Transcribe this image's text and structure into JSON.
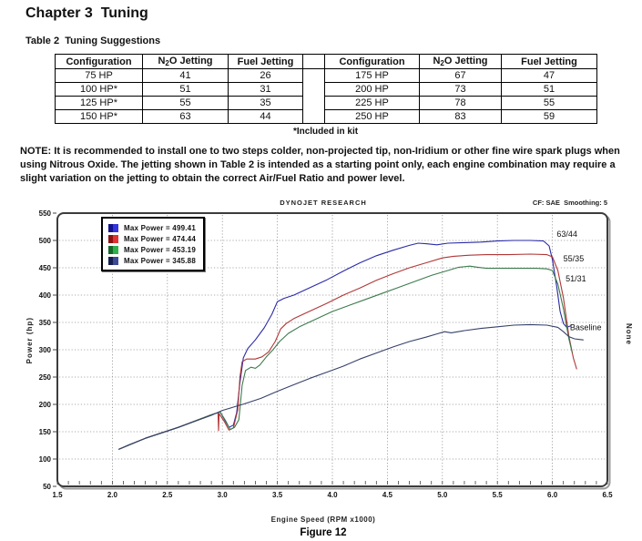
{
  "page": {
    "chapter_title": "Chapter 3  Tuning",
    "table_caption": "Table 2  Tuning Suggestions",
    "note_text": "NOTE:  It is recommended to install one to two steps colder, non-projected tip, non-Iridium or other fine wire spark plugs when using Nitrous Oxide. The jetting shown in Table 2 is intended as a starting point only, each engine combination may require a slight variation on the jetting to obtain the correct Air/Fuel Ratio and power level.",
    "figure_caption": "Figure 12"
  },
  "table": {
    "headers": {
      "config": "Configuration",
      "n2o_pre": "N",
      "n2o_sub": "2",
      "n2o_post": "O Jetting",
      "fuel": "Fuel Jetting"
    },
    "rows_left": [
      [
        "75 HP",
        "41",
        "26"
      ],
      [
        "100 HP*",
        "51",
        "31"
      ],
      [
        "125 HP*",
        "55",
        "35"
      ],
      [
        "150 HP*",
        "63",
        "44"
      ]
    ],
    "rows_right": [
      [
        "175 HP",
        "67",
        "47"
      ],
      [
        "200 HP",
        "73",
        "51"
      ],
      [
        "225 HP",
        "78",
        "55"
      ],
      [
        "250 HP",
        "83",
        "59"
      ]
    ],
    "footnote": "*Included in kit"
  },
  "chart_data": {
    "type": "line",
    "title": "DYNOJET RESEARCH",
    "top_right": "CF: SAE  Smoothing: 5",
    "xlabel": "Engine Speed (RPM x1000)",
    "ylabel": "Power (hp)",
    "right_side_label": "None",
    "xlim": [
      1.5,
      6.5
    ],
    "ylim": [
      50,
      550
    ],
    "x_ticks": [
      "1.5",
      "2.0",
      "2.5",
      "3.0",
      "3.5",
      "4.0",
      "4.5",
      "5.0",
      "5.5",
      "6.0",
      "6.5"
    ],
    "y_ticks": [
      "550",
      "500",
      "450",
      "400",
      "350",
      "300",
      "250",
      "200",
      "150",
      "100",
      "50"
    ],
    "grid": true,
    "legend_position": "top-left",
    "legend": [
      {
        "label": "Max Power = 499.41",
        "color": "#3434e0",
        "color_dark": "#12128c"
      },
      {
        "label": "Max Power = 474.44",
        "color": "#e03434",
        "color_dark": "#8c1212"
      },
      {
        "label": "Max Power = 453.19",
        "color": "#30b04a",
        "color_dark": "#14682a"
      },
      {
        "label": "Max Power = 345.88",
        "color": "#3c4a96",
        "color_dark": "#141e50"
      }
    ],
    "series": [
      {
        "name": "63/44",
        "color": "#2a2aa8",
        "points": [
          [
            2.06,
            118
          ],
          [
            2.3,
            138
          ],
          [
            2.6,
            158
          ],
          [
            2.9,
            181
          ],
          [
            2.98,
            186
          ],
          [
            3.02,
            172
          ],
          [
            3.06,
            158
          ],
          [
            3.1,
            162
          ],
          [
            3.13,
            185
          ],
          [
            3.16,
            240
          ],
          [
            3.19,
            285
          ],
          [
            3.23,
            302
          ],
          [
            3.3,
            318
          ],
          [
            3.38,
            340
          ],
          [
            3.45,
            365
          ],
          [
            3.5,
            388
          ],
          [
            3.56,
            394
          ],
          [
            3.65,
            400
          ],
          [
            3.8,
            414
          ],
          [
            3.95,
            428
          ],
          [
            4.1,
            444
          ],
          [
            4.25,
            459
          ],
          [
            4.4,
            472
          ],
          [
            4.55,
            482
          ],
          [
            4.7,
            491
          ],
          [
            4.78,
            495
          ],
          [
            4.85,
            494
          ],
          [
            4.95,
            492
          ],
          [
            5.05,
            495
          ],
          [
            5.2,
            496
          ],
          [
            5.35,
            497
          ],
          [
            5.5,
            499
          ],
          [
            5.65,
            500
          ],
          [
            5.8,
            500
          ],
          [
            5.92,
            499
          ],
          [
            5.97,
            490
          ],
          [
            6.0,
            465
          ],
          [
            6.04,
            415
          ],
          [
            6.07,
            370
          ],
          [
            6.1,
            348
          ],
          [
            6.13,
            341
          ],
          [
            6.17,
            344
          ]
        ]
      },
      {
        "name": "55/35",
        "color": "#b03636",
        "points": [
          [
            2.06,
            118
          ],
          [
            2.3,
            138
          ],
          [
            2.6,
            158
          ],
          [
            2.9,
            181
          ],
          [
            2.96,
            185
          ],
          [
            2.965,
            152
          ],
          [
            2.97,
            183
          ],
          [
            3.02,
            168
          ],
          [
            3.06,
            153
          ],
          [
            3.1,
            157
          ],
          [
            3.14,
            190
          ],
          [
            3.16,
            250
          ],
          [
            3.18,
            278
          ],
          [
            3.22,
            283
          ],
          [
            3.3,
            283
          ],
          [
            3.36,
            287
          ],
          [
            3.42,
            296
          ],
          [
            3.48,
            315
          ],
          [
            3.53,
            338
          ],
          [
            3.58,
            348
          ],
          [
            3.65,
            357
          ],
          [
            3.8,
            371
          ],
          [
            3.95,
            385
          ],
          [
            4.1,
            400
          ],
          [
            4.25,
            413
          ],
          [
            4.4,
            427
          ],
          [
            4.55,
            439
          ],
          [
            4.7,
            450
          ],
          [
            4.85,
            459
          ],
          [
            5.0,
            468
          ],
          [
            5.1,
            471
          ],
          [
            5.25,
            473
          ],
          [
            5.4,
            474
          ],
          [
            5.6,
            474
          ],
          [
            5.8,
            475
          ],
          [
            5.95,
            474
          ],
          [
            6.0,
            470
          ],
          [
            6.05,
            445
          ],
          [
            6.1,
            395
          ],
          [
            6.15,
            325
          ],
          [
            6.19,
            285
          ],
          [
            6.22,
            265
          ]
        ]
      },
      {
        "name": "51/31",
        "color": "#3c7a4c",
        "points": [
          [
            2.06,
            118
          ],
          [
            2.3,
            138
          ],
          [
            2.6,
            158
          ],
          [
            2.9,
            181
          ],
          [
            2.98,
            186
          ],
          [
            3.03,
            170
          ],
          [
            3.07,
            154
          ],
          [
            3.11,
            158
          ],
          [
            3.15,
            172
          ],
          [
            3.18,
            235
          ],
          [
            3.21,
            262
          ],
          [
            3.26,
            268
          ],
          [
            3.3,
            266
          ],
          [
            3.34,
            272
          ],
          [
            3.4,
            287
          ],
          [
            3.46,
            300
          ],
          [
            3.52,
            315
          ],
          [
            3.6,
            330
          ],
          [
            3.7,
            342
          ],
          [
            3.85,
            356
          ],
          [
            4.0,
            370
          ],
          [
            4.15,
            381
          ],
          [
            4.3,
            392
          ],
          [
            4.45,
            403
          ],
          [
            4.6,
            414
          ],
          [
            4.75,
            425
          ],
          [
            4.9,
            436
          ],
          [
            5.05,
            445
          ],
          [
            5.15,
            451
          ],
          [
            5.25,
            453
          ],
          [
            5.32,
            451
          ],
          [
            5.4,
            449
          ],
          [
            5.55,
            449
          ],
          [
            5.7,
            449
          ],
          [
            5.85,
            449
          ],
          [
            5.95,
            448
          ],
          [
            6.0,
            445
          ],
          [
            6.05,
            420
          ],
          [
            6.1,
            375
          ],
          [
            6.15,
            320
          ],
          [
            6.18,
            295
          ]
        ]
      },
      {
        "name": "Baseline",
        "color": "#35406a",
        "points": [
          [
            2.06,
            118
          ],
          [
            2.15,
            126
          ],
          [
            2.3,
            138
          ],
          [
            2.45,
            148
          ],
          [
            2.6,
            158
          ],
          [
            2.75,
            169
          ],
          [
            2.9,
            180
          ],
          [
            3.0,
            189
          ],
          [
            3.1,
            195
          ],
          [
            3.2,
            201
          ],
          [
            3.35,
            211
          ],
          [
            3.5,
            224
          ],
          [
            3.65,
            236
          ],
          [
            3.8,
            248
          ],
          [
            3.95,
            259
          ],
          [
            4.1,
            270
          ],
          [
            4.25,
            283
          ],
          [
            4.4,
            294
          ],
          [
            4.55,
            305
          ],
          [
            4.7,
            315
          ],
          [
            4.85,
            323
          ],
          [
            4.95,
            329
          ],
          [
            5.02,
            333
          ],
          [
            5.08,
            331
          ],
          [
            5.2,
            335
          ],
          [
            5.35,
            339
          ],
          [
            5.5,
            342
          ],
          [
            5.65,
            345
          ],
          [
            5.8,
            346
          ],
          [
            5.95,
            345
          ],
          [
            6.05,
            341
          ],
          [
            6.1,
            333
          ],
          [
            6.15,
            324
          ],
          [
            6.2,
            320
          ],
          [
            6.28,
            318
          ]
        ]
      }
    ],
    "curve_labels": [
      {
        "text": "63/44",
        "x": 6.04,
        "y": 512
      },
      {
        "text": "55/35",
        "x": 6.1,
        "y": 467
      },
      {
        "text": "51/31",
        "x": 6.12,
        "y": 430
      },
      {
        "text": "Baseline",
        "x": 6.16,
        "y": 341
      }
    ]
  }
}
